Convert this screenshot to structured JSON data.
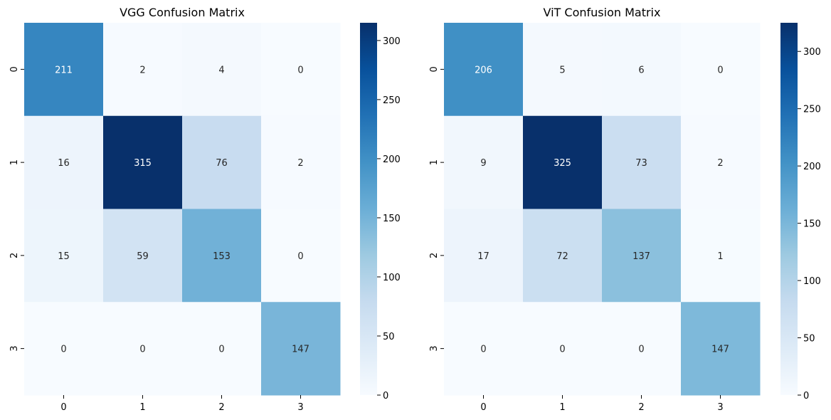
{
  "chart_data": [
    {
      "type": "heatmap",
      "title": "VGG Confusion Matrix",
      "x_tick_labels": [
        "0",
        "1",
        "2",
        "3"
      ],
      "y_tick_labels": [
        "0",
        "1",
        "2",
        "3"
      ],
      "values": [
        [
          211,
          2,
          4,
          0
        ],
        [
          16,
          315,
          76,
          2
        ],
        [
          15,
          59,
          153,
          0
        ],
        [
          0,
          0,
          0,
          147
        ]
      ],
      "colorbar": {
        "min": 0,
        "max": 315,
        "ticks": [
          0,
          50,
          100,
          150,
          200,
          250,
          300
        ],
        "colormap": "Blues"
      },
      "annotated": true,
      "grid": false
    },
    {
      "type": "heatmap",
      "title": "ViT Confusion Matrix",
      "x_tick_labels": [
        "0",
        "1",
        "2",
        "3"
      ],
      "y_tick_labels": [
        "0",
        "1",
        "2",
        "3"
      ],
      "values": [
        [
          206,
          5,
          6,
          0
        ],
        [
          9,
          325,
          73,
          2
        ],
        [
          17,
          72,
          137,
          1
        ],
        [
          0,
          0,
          0,
          147
        ]
      ],
      "colorbar": {
        "min": 0,
        "max": 325,
        "ticks": [
          0,
          50,
          100,
          150,
          200,
          250,
          300
        ],
        "colormap": "Blues"
      },
      "annotated": true,
      "grid": false
    }
  ],
  "colormap_stops": [
    "#f7fbff",
    "#deebf7",
    "#c6dbef",
    "#9ecae1",
    "#6baed6",
    "#4292c6",
    "#2171b5",
    "#08519c",
    "#08306b"
  ]
}
